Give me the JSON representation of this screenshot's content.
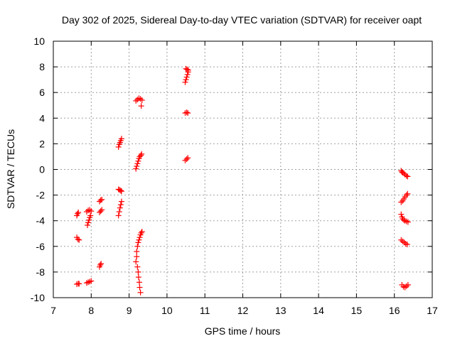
{
  "chart_data": {
    "type": "scatter",
    "title": "Day 302 of 2025, Sidereal Day-to-day VTEC variation (SDTVAR) for receiver oapt",
    "xlabel": "GPS time / hours",
    "ylabel": "SDTVAR / TECUs",
    "xlim": [
      7,
      17
    ],
    "ylim": [
      -10,
      10
    ],
    "x_ticks": [
      7,
      8,
      9,
      10,
      11,
      12,
      13,
      14,
      15,
      16,
      17
    ],
    "y_ticks": [
      -10,
      -8,
      -6,
      -4,
      -2,
      0,
      2,
      4,
      6,
      8,
      10
    ],
    "grid": true,
    "marker": "+",
    "marker_color": "#ff0000",
    "series": [
      {
        "name": "SDTVAR",
        "points": [
          [
            7.62,
            -3.6
          ],
          [
            7.64,
            -3.45
          ],
          [
            7.66,
            -3.35
          ],
          [
            7.62,
            -5.3
          ],
          [
            7.65,
            -5.45
          ],
          [
            7.68,
            -5.5
          ],
          [
            7.62,
            -8.95
          ],
          [
            7.66,
            -8.9
          ],
          [
            7.68,
            -8.92
          ],
          [
            7.88,
            -3.3
          ],
          [
            7.92,
            -3.2
          ],
          [
            7.96,
            -3.15
          ],
          [
            8.0,
            -3.25
          ],
          [
            7.9,
            -4.35
          ],
          [
            7.92,
            -4.15
          ],
          [
            7.94,
            -3.95
          ],
          [
            7.96,
            -3.75
          ],
          [
            7.98,
            -3.6
          ],
          [
            7.88,
            -8.85
          ],
          [
            7.92,
            -8.8
          ],
          [
            7.96,
            -8.75
          ],
          [
            8.0,
            -8.7
          ],
          [
            8.22,
            -3.35
          ],
          [
            8.25,
            -3.25
          ],
          [
            8.28,
            -3.15
          ],
          [
            8.22,
            -2.5
          ],
          [
            8.25,
            -2.4
          ],
          [
            8.28,
            -2.35
          ],
          [
            8.22,
            -7.6
          ],
          [
            8.24,
            -7.45
          ],
          [
            8.26,
            -7.35
          ],
          [
            8.72,
            1.75
          ],
          [
            8.74,
            1.95
          ],
          [
            8.76,
            2.1
          ],
          [
            8.78,
            2.25
          ],
          [
            8.8,
            2.4
          ],
          [
            8.72,
            -1.55
          ],
          [
            8.75,
            -1.6
          ],
          [
            8.78,
            -1.65
          ],
          [
            8.8,
            -1.7
          ],
          [
            8.72,
            -3.6
          ],
          [
            8.74,
            -3.3
          ],
          [
            8.76,
            -3.0
          ],
          [
            8.78,
            -2.75
          ],
          [
            8.8,
            -2.5
          ],
          [
            9.18,
            5.35
          ],
          [
            9.22,
            5.45
          ],
          [
            9.26,
            5.55
          ],
          [
            9.3,
            5.5
          ],
          [
            9.34,
            5.4
          ],
          [
            9.32,
            4.95
          ],
          [
            9.18,
            0.05
          ],
          [
            9.2,
            0.25
          ],
          [
            9.22,
            0.45
          ],
          [
            9.24,
            0.65
          ],
          [
            9.26,
            0.85
          ],
          [
            9.28,
            1.0
          ],
          [
            9.31,
            1.1
          ],
          [
            9.33,
            1.2
          ],
          [
            9.18,
            -7.2
          ],
          [
            9.2,
            -6.8
          ],
          [
            9.2,
            -6.4
          ],
          [
            9.22,
            -6.0
          ],
          [
            9.24,
            -5.7
          ],
          [
            9.26,
            -5.5
          ],
          [
            9.28,
            -5.3
          ],
          [
            9.3,
            -5.1
          ],
          [
            9.32,
            -4.95
          ],
          [
            9.34,
            -4.85
          ],
          [
            9.22,
            -7.6
          ],
          [
            9.24,
            -8.0
          ],
          [
            9.25,
            -8.4
          ],
          [
            9.27,
            -8.8
          ],
          [
            9.28,
            -9.2
          ],
          [
            9.3,
            -9.6
          ],
          [
            10.48,
            6.8
          ],
          [
            10.5,
            7.0
          ],
          [
            10.52,
            7.2
          ],
          [
            10.54,
            7.4
          ],
          [
            10.56,
            7.6
          ],
          [
            10.5,
            7.85
          ],
          [
            10.53,
            7.8
          ],
          [
            10.56,
            7.75
          ],
          [
            10.48,
            4.4
          ],
          [
            10.52,
            4.45
          ],
          [
            10.55,
            4.4
          ],
          [
            10.48,
            0.7
          ],
          [
            10.52,
            0.8
          ],
          [
            10.55,
            0.9
          ],
          [
            16.18,
            -0.1
          ],
          [
            16.2,
            -0.2
          ],
          [
            16.22,
            -0.25
          ],
          [
            16.25,
            -0.3
          ],
          [
            16.28,
            -0.4
          ],
          [
            16.32,
            -0.5
          ],
          [
            16.35,
            -0.55
          ],
          [
            16.18,
            -2.55
          ],
          [
            16.22,
            -2.45
          ],
          [
            16.25,
            -2.3
          ],
          [
            16.28,
            -2.15
          ],
          [
            16.32,
            -2.0
          ],
          [
            16.35,
            -1.9
          ],
          [
            16.18,
            -3.5
          ],
          [
            16.2,
            -3.7
          ],
          [
            16.22,
            -3.85
          ],
          [
            16.25,
            -3.95
          ],
          [
            16.28,
            -4.0
          ],
          [
            16.32,
            -4.05
          ],
          [
            16.36,
            -4.1
          ],
          [
            16.18,
            -5.5
          ],
          [
            16.22,
            -5.6
          ],
          [
            16.26,
            -5.7
          ],
          [
            16.3,
            -5.8
          ],
          [
            16.34,
            -5.85
          ],
          [
            16.2,
            -9.0
          ],
          [
            16.24,
            -9.15
          ],
          [
            16.28,
            -9.2
          ],
          [
            16.32,
            -9.1
          ],
          [
            16.36,
            -9.0
          ]
        ]
      }
    ]
  }
}
